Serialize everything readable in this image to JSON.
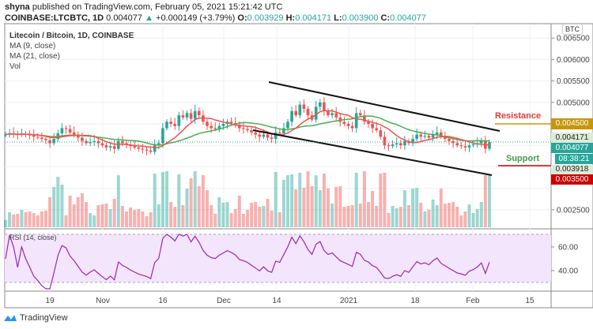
{
  "header": {
    "author": "shyna",
    "published": "published on TradingView.com, February 05, 2021 15:21:42 UTC",
    "symbol": "COINBASE:LTCBTC, 1D",
    "last": "0.004077",
    "change": "+0.000149 (+3.79%)",
    "o_label": "O:",
    "o": "0.003929",
    "h_label": "H:",
    "h": "0.004171",
    "l_label": "L:",
    "l": "0.003900",
    "c_label": "C:",
    "c": "0.004077"
  },
  "legend": {
    "title": "Litecoin / Bitcoin, 1D, COINBASE",
    "ma9": "MA (9, close)",
    "ma21": "MA (21, close)",
    "vol": "Vol",
    "rsi": "RSI (14, close)"
  },
  "annotations": {
    "resistance": "Resistance",
    "support": "Support"
  },
  "price_labels": {
    "currency": "BTC",
    "resistance": "0.004500",
    "high": "0.004171",
    "last": "0.004077",
    "countdown": "08:38:21",
    "low": "0.003918",
    "support": "0.003500"
  },
  "footer": {
    "logo": "TradingView"
  },
  "colors": {
    "up": "#26a69a",
    "down": "#ef5350",
    "ma9": "#ef5350",
    "ma21": "#4caf50",
    "rsi": "#9c27b0",
    "resistance": "#c8960c",
    "support": "#cc0000"
  },
  "chart_data": {
    "type": "candlestick",
    "start_date": "2020-10-08",
    "price_ticks": [
      "0.006500",
      "0.006000",
      "0.005500",
      "0.005000",
      "0.002500"
    ],
    "rsi_ticks": [
      "60.00",
      "40.00"
    ],
    "x_ticks": [
      "19",
      "Nov",
      "16",
      "Dec",
      "14",
      "2021",
      "18",
      "Feb",
      "15"
    ],
    "closes": [
      0.00425,
      0.00428,
      0.00426,
      0.00424,
      0.00427,
      0.00425,
      0.00423,
      0.0042,
      0.00418,
      0.00415,
      0.00412,
      0.00405,
      0.00415,
      0.00428,
      0.0044,
      0.00438,
      0.0043,
      0.00425,
      0.00418,
      0.0041,
      0.00405,
      0.00408,
      0.0041,
      0.00405,
      0.004,
      0.00395,
      0.00398,
      0.00392,
      0.0041,
      0.00405,
      0.00402,
      0.00398,
      0.00395,
      0.00392,
      0.0039,
      0.00388,
      0.00385,
      0.004,
      0.00405,
      0.0044,
      0.00455,
      0.0045,
      0.00445,
      0.0047,
      0.00465,
      0.00475,
      0.00462,
      0.0048,
      0.0047,
      0.00455,
      0.00445,
      0.0044,
      0.00438,
      0.00445,
      0.0045,
      0.00455,
      0.00452,
      0.00448,
      0.0044,
      0.00438,
      0.00435,
      0.0043,
      0.00425,
      0.0042,
      0.00425,
      0.00418,
      0.00415,
      0.0043,
      0.00428,
      0.0044,
      0.00455,
      0.0048,
      0.0047,
      0.00495,
      0.00485,
      0.0047,
      0.0046,
      0.0049,
      0.005,
      0.0048,
      0.0047,
      0.00475,
      0.00465,
      0.00455,
      0.0045,
      0.00445,
      0.0044,
      0.00475,
      0.0047,
      0.00455,
      0.0045,
      0.0044,
      0.00435,
      0.0042,
      0.004,
      0.00398,
      0.00402,
      0.00405,
      0.004,
      0.0041,
      0.00405,
      0.00415,
      0.00425,
      0.0042,
      0.00422,
      0.00418,
      0.00425,
      0.0043,
      0.0042,
      0.00415,
      0.0041,
      0.00405,
      0.004,
      0.00398,
      0.00395,
      0.004,
      0.00402,
      0.00405,
      0.0041,
      0.00392,
      0.004077
    ],
    "resistance": 0.0045,
    "support": 0.0035
  }
}
